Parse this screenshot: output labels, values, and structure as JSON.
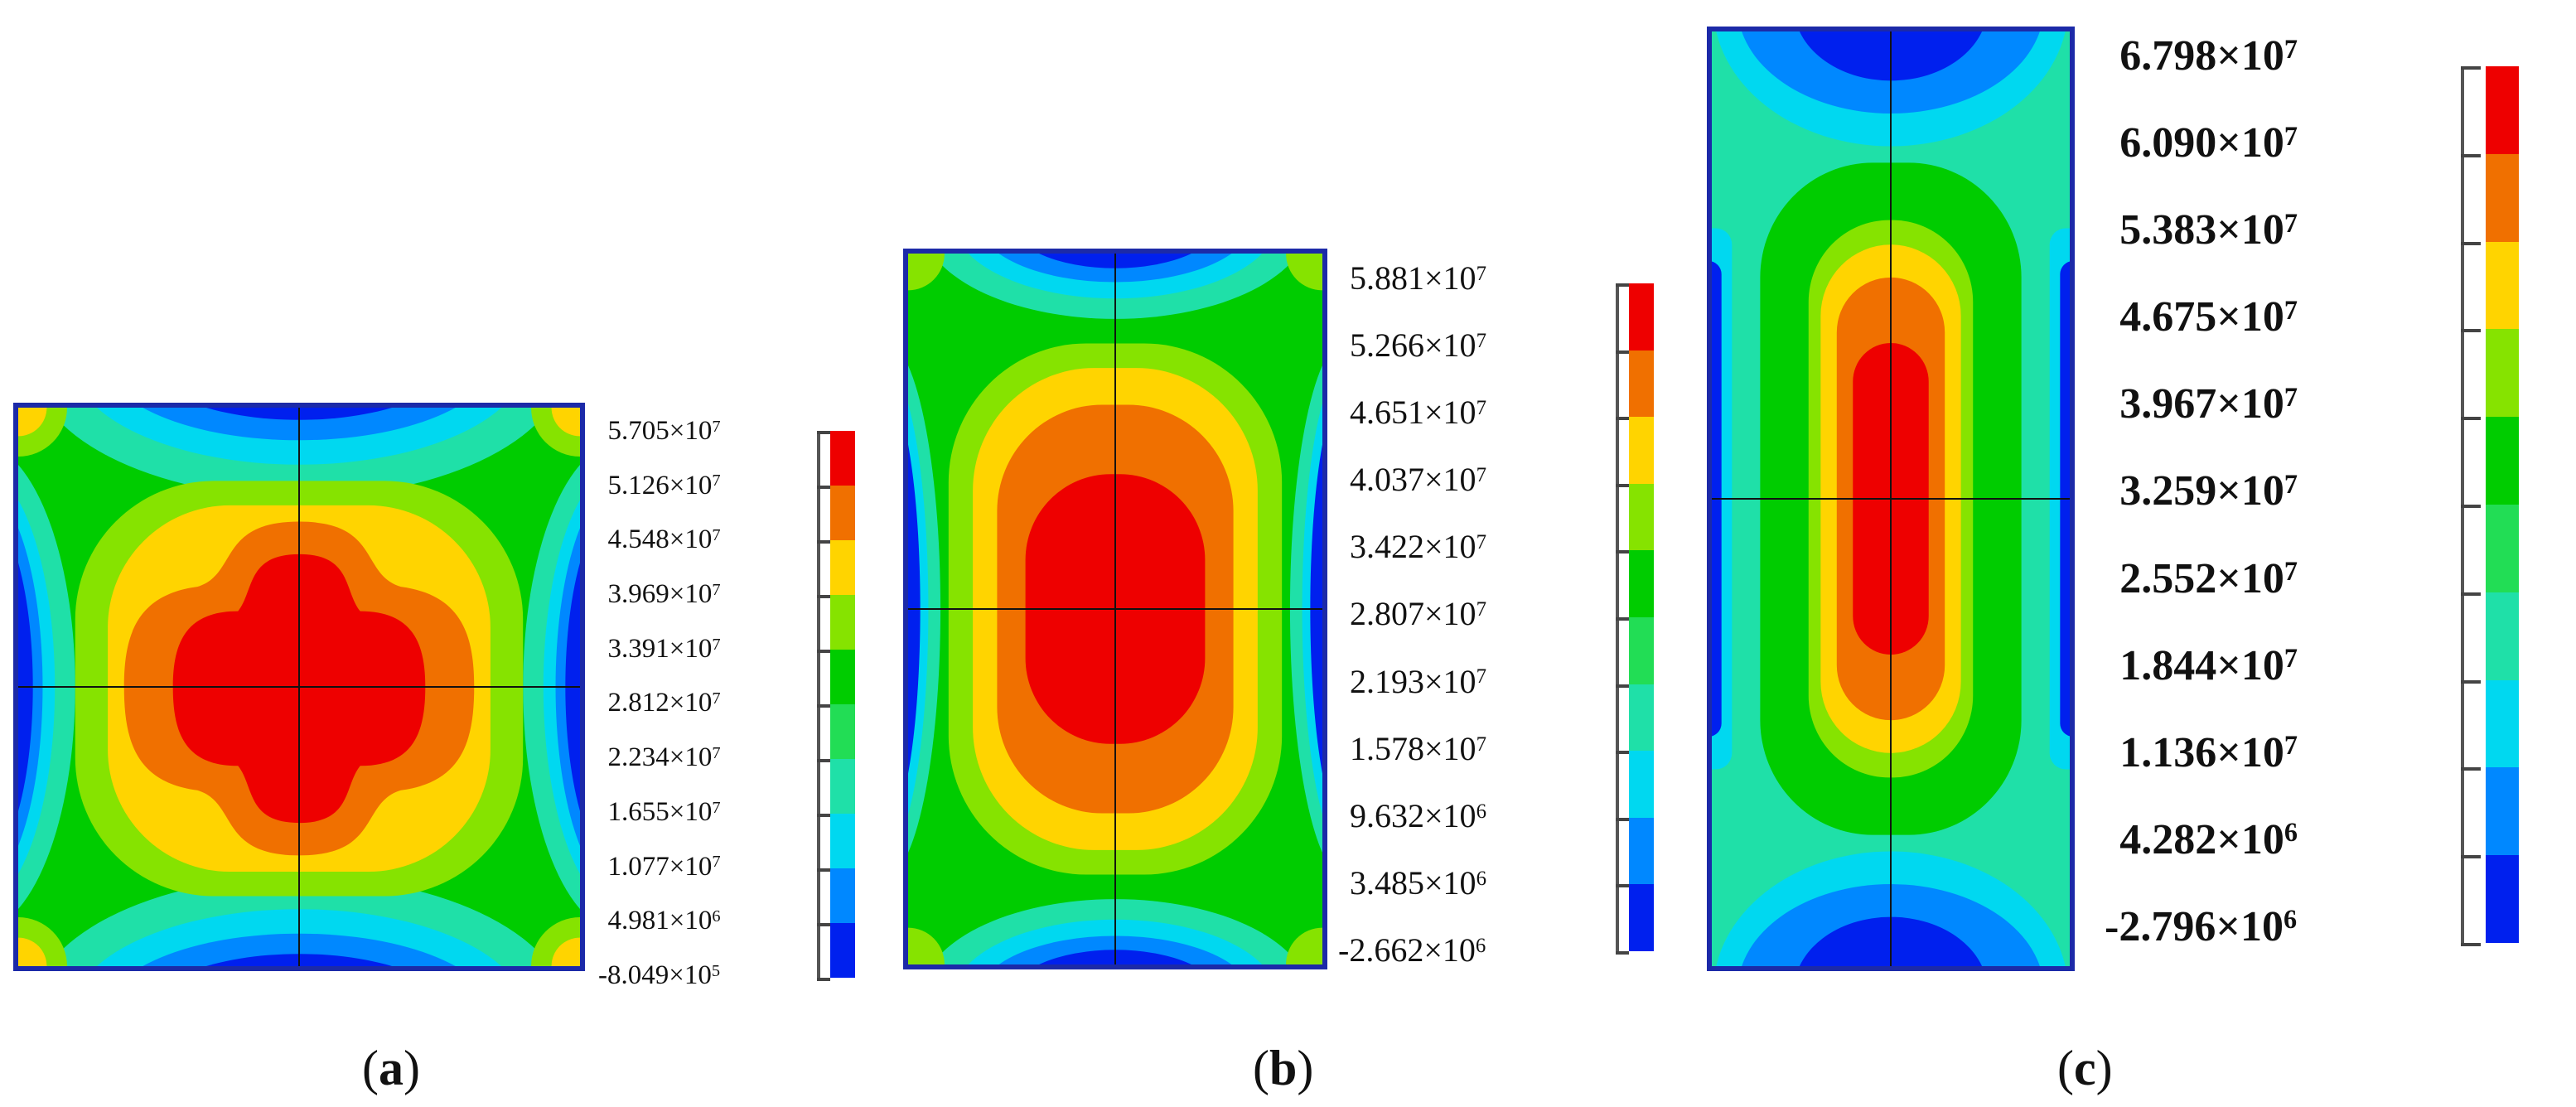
{
  "palette": [
    "#ee0000",
    "#f07000",
    "#ffd400",
    "#86e300",
    "#00cc00",
    "#22dd55",
    "#1fe0a8",
    "#00d8f0",
    "#0088ff",
    "#0020ee"
  ],
  "colors": {
    "border": "#1c2aa8",
    "red": "#ee0000",
    "orange": "#f07000",
    "yellow": "#ffd400",
    "lime": "#86e300",
    "green": "#00cc00",
    "teal": "#1fe0a8",
    "cyan": "#00d8f0",
    "blue": "#0088ff",
    "deepblue": "#0020ee"
  },
  "figures": [
    {
      "caption": "a",
      "legend": [
        {
          "m": "5.705",
          "e": "7"
        },
        {
          "m": "5.126",
          "e": "7"
        },
        {
          "m": "4.548",
          "e": "7"
        },
        {
          "m": "3.969",
          "e": "7"
        },
        {
          "m": "3.391",
          "e": "7"
        },
        {
          "m": "2.812",
          "e": "7"
        },
        {
          "m": "2.234",
          "e": "7"
        },
        {
          "m": "1.655",
          "e": "7"
        },
        {
          "m": "1.077",
          "e": "7"
        },
        {
          "m": "4.981",
          "e": "6"
        },
        {
          "m": "-8.049",
          "e": "5"
        }
      ]
    },
    {
      "caption": "b",
      "legend": [
        {
          "m": "5.881",
          "e": "7"
        },
        {
          "m": "5.266",
          "e": "7"
        },
        {
          "m": "4.651",
          "e": "7"
        },
        {
          "m": "4.037",
          "e": "7"
        },
        {
          "m": "3.422",
          "e": "7"
        },
        {
          "m": "2.807",
          "e": "7"
        },
        {
          "m": "2.193",
          "e": "7"
        },
        {
          "m": "1.578",
          "e": "7"
        },
        {
          "m": "9.632",
          "e": "6"
        },
        {
          "m": "3.485",
          "e": "6"
        },
        {
          "m": "-2.662",
          "e": "6"
        }
      ]
    },
    {
      "caption": "c",
      "legend": [
        {
          "m": "6.798",
          "e": "7"
        },
        {
          "m": "6.090",
          "e": "7"
        },
        {
          "m": "5.383",
          "e": "7"
        },
        {
          "m": "4.675",
          "e": "7"
        },
        {
          "m": "3.967",
          "e": "7"
        },
        {
          "m": "3.259",
          "e": "7"
        },
        {
          "m": "2.552",
          "e": "7"
        },
        {
          "m": "1.844",
          "e": "7"
        },
        {
          "m": "1.136",
          "e": "7"
        },
        {
          "m": "4.282",
          "e": "6"
        },
        {
          "m": "-2.796",
          "e": "6"
        }
      ]
    }
  ]
}
